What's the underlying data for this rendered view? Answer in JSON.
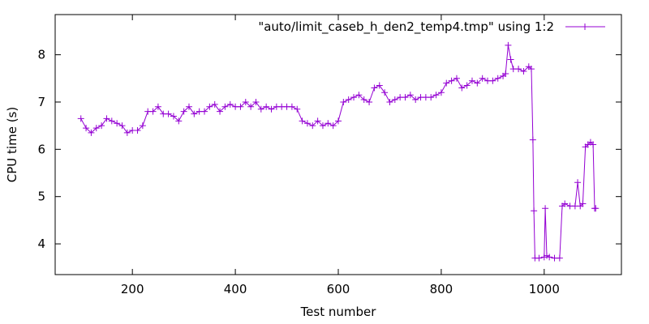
{
  "chart_data": {
    "type": "line",
    "xlabel": "Test number",
    "ylabel": "CPU time (s)",
    "xlim": [
      50,
      1150
    ],
    "ylim": [
      3.35,
      8.85
    ],
    "xticks": [
      200,
      400,
      600,
      800,
      1000
    ],
    "yticks": [
      4,
      5,
      6,
      7,
      8
    ],
    "grid": false,
    "legend_position": "top-right",
    "series": [
      {
        "name": "\"auto/limit_caseb_h_den2_temp4.tmp\" using 1:2",
        "color": "#9400d3",
        "marker": "plus",
        "points": [
          [
            100,
            6.65
          ],
          [
            110,
            6.45
          ],
          [
            120,
            6.35
          ],
          [
            130,
            6.45
          ],
          [
            140,
            6.5
          ],
          [
            150,
            6.65
          ],
          [
            160,
            6.6
          ],
          [
            170,
            6.55
          ],
          [
            180,
            6.5
          ],
          [
            190,
            6.35
          ],
          [
            200,
            6.4
          ],
          [
            210,
            6.4
          ],
          [
            220,
            6.5
          ],
          [
            230,
            6.8
          ],
          [
            240,
            6.8
          ],
          [
            250,
            6.9
          ],
          [
            260,
            6.75
          ],
          [
            270,
            6.75
          ],
          [
            280,
            6.7
          ],
          [
            290,
            6.6
          ],
          [
            300,
            6.8
          ],
          [
            310,
            6.9
          ],
          [
            320,
            6.75
          ],
          [
            330,
            6.8
          ],
          [
            340,
            6.8
          ],
          [
            350,
            6.9
          ],
          [
            360,
            6.95
          ],
          [
            370,
            6.8
          ],
          [
            380,
            6.9
          ],
          [
            390,
            6.95
          ],
          [
            400,
            6.9
          ],
          [
            410,
            6.9
          ],
          [
            420,
            7.0
          ],
          [
            430,
            6.9
          ],
          [
            440,
            7.0
          ],
          [
            450,
            6.85
          ],
          [
            460,
            6.9
          ],
          [
            470,
            6.85
          ],
          [
            480,
            6.9
          ],
          [
            490,
            6.9
          ],
          [
            500,
            6.9
          ],
          [
            510,
            6.9
          ],
          [
            520,
            6.85
          ],
          [
            530,
            6.6
          ],
          [
            540,
            6.55
          ],
          [
            550,
            6.5
          ],
          [
            560,
            6.6
          ],
          [
            570,
            6.5
          ],
          [
            580,
            6.55
          ],
          [
            590,
            6.5
          ],
          [
            600,
            6.6
          ],
          [
            610,
            7.0
          ],
          [
            620,
            7.05
          ],
          [
            630,
            7.1
          ],
          [
            640,
            7.15
          ],
          [
            650,
            7.05
          ],
          [
            660,
            7.0
          ],
          [
            670,
            7.3
          ],
          [
            680,
            7.35
          ],
          [
            690,
            7.2
          ],
          [
            700,
            7.0
          ],
          [
            710,
            7.05
          ],
          [
            720,
            7.1
          ],
          [
            730,
            7.1
          ],
          [
            740,
            7.15
          ],
          [
            750,
            7.05
          ],
          [
            760,
            7.1
          ],
          [
            770,
            7.1
          ],
          [
            780,
            7.1
          ],
          [
            790,
            7.15
          ],
          [
            800,
            7.2
          ],
          [
            810,
            7.4
          ],
          [
            820,
            7.45
          ],
          [
            830,
            7.5
          ],
          [
            840,
            7.3
          ],
          [
            850,
            7.35
          ],
          [
            860,
            7.45
          ],
          [
            870,
            7.4
          ],
          [
            880,
            7.5
          ],
          [
            890,
            7.45
          ],
          [
            900,
            7.45
          ],
          [
            910,
            7.5
          ],
          [
            920,
            7.55
          ],
          [
            925,
            7.6
          ],
          [
            930,
            8.2
          ],
          [
            935,
            7.9
          ],
          [
            940,
            7.7
          ],
          [
            950,
            7.7
          ],
          [
            960,
            7.65
          ],
          [
            970,
            7.75
          ],
          [
            975,
            7.7
          ],
          [
            978,
            6.2
          ],
          [
            980,
            4.7
          ],
          [
            982,
            3.7
          ],
          [
            990,
            3.7
          ],
          [
            1000,
            3.72
          ],
          [
            1002,
            4.75
          ],
          [
            1005,
            3.75
          ],
          [
            1010,
            3.72
          ],
          [
            1020,
            3.7
          ],
          [
            1030,
            3.7
          ],
          [
            1035,
            4.8
          ],
          [
            1040,
            4.85
          ],
          [
            1050,
            4.8
          ],
          [
            1060,
            4.8
          ],
          [
            1065,
            5.3
          ],
          [
            1070,
            4.8
          ],
          [
            1075,
            4.85
          ],
          [
            1080,
            6.05
          ],
          [
            1085,
            6.1
          ],
          [
            1090,
            6.15
          ],
          [
            1095,
            6.1
          ],
          [
            1098,
            4.75
          ],
          [
            1100,
            4.75
          ]
        ]
      }
    ]
  }
}
